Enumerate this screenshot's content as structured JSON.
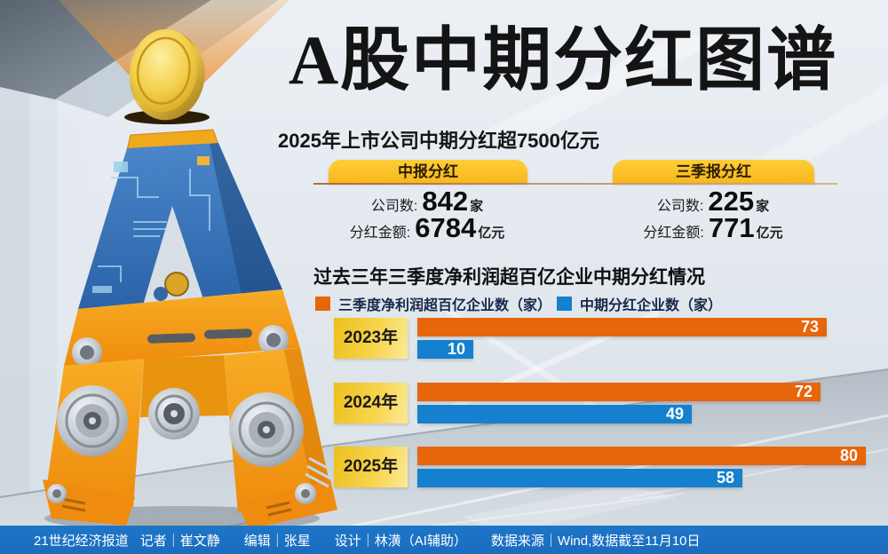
{
  "title": "A股中期分红图谱",
  "subtitle": "2025年上市公司中期分红超7500亿元",
  "summary": {
    "left": {
      "tab": "中报分红",
      "rows": [
        {
          "label": "公司数:",
          "value": "842",
          "unit": "家"
        },
        {
          "label": "分红金额:",
          "value": "6784",
          "unit": "亿元"
        }
      ]
    },
    "right": {
      "tab": "三季报分红",
      "rows": [
        {
          "label": "公司数:",
          "value": "225",
          "unit": "家"
        },
        {
          "label": "分红金额:",
          "value": "771",
          "unit": "亿元"
        }
      ]
    }
  },
  "chart_data": {
    "type": "bar",
    "orientation": "horizontal",
    "title": "过去三年三季度净利润超百亿企业中期分红情况",
    "categories": [
      "2023年",
      "2024年",
      "2025年"
    ],
    "series": [
      {
        "name": "三季度净利润超百亿企业数（家）",
        "color": "#e7650b",
        "values": [
          73,
          72,
          80
        ]
      },
      {
        "name": "中期分红企业数（家）",
        "color": "#1480ce",
        "values": [
          10,
          49,
          58
        ]
      }
    ],
    "xlim": [
      0,
      82
    ],
    "grid": false,
    "legend_position": "top",
    "value_labels": "inside-end"
  },
  "footer": {
    "segments": [
      "21世纪经济报道",
      "记者｜崔文静",
      "编辑｜张星",
      "设计｜林潢（AI辅助）",
      "数据来源｜Wind,数据截至11月10日"
    ]
  },
  "decor": {
    "coin_icon": "gold-coin",
    "mascot": "letter-A-robot-statue"
  },
  "colors": {
    "series_orange": "#e7650b",
    "series_blue": "#1480ce",
    "tab_yellow": "#ffc82e",
    "year_box_yellow": "#f2cb2f",
    "footer_blue": "#1e76c8",
    "coin_gold": "#f3cf4a",
    "title_black": "#141414"
  }
}
